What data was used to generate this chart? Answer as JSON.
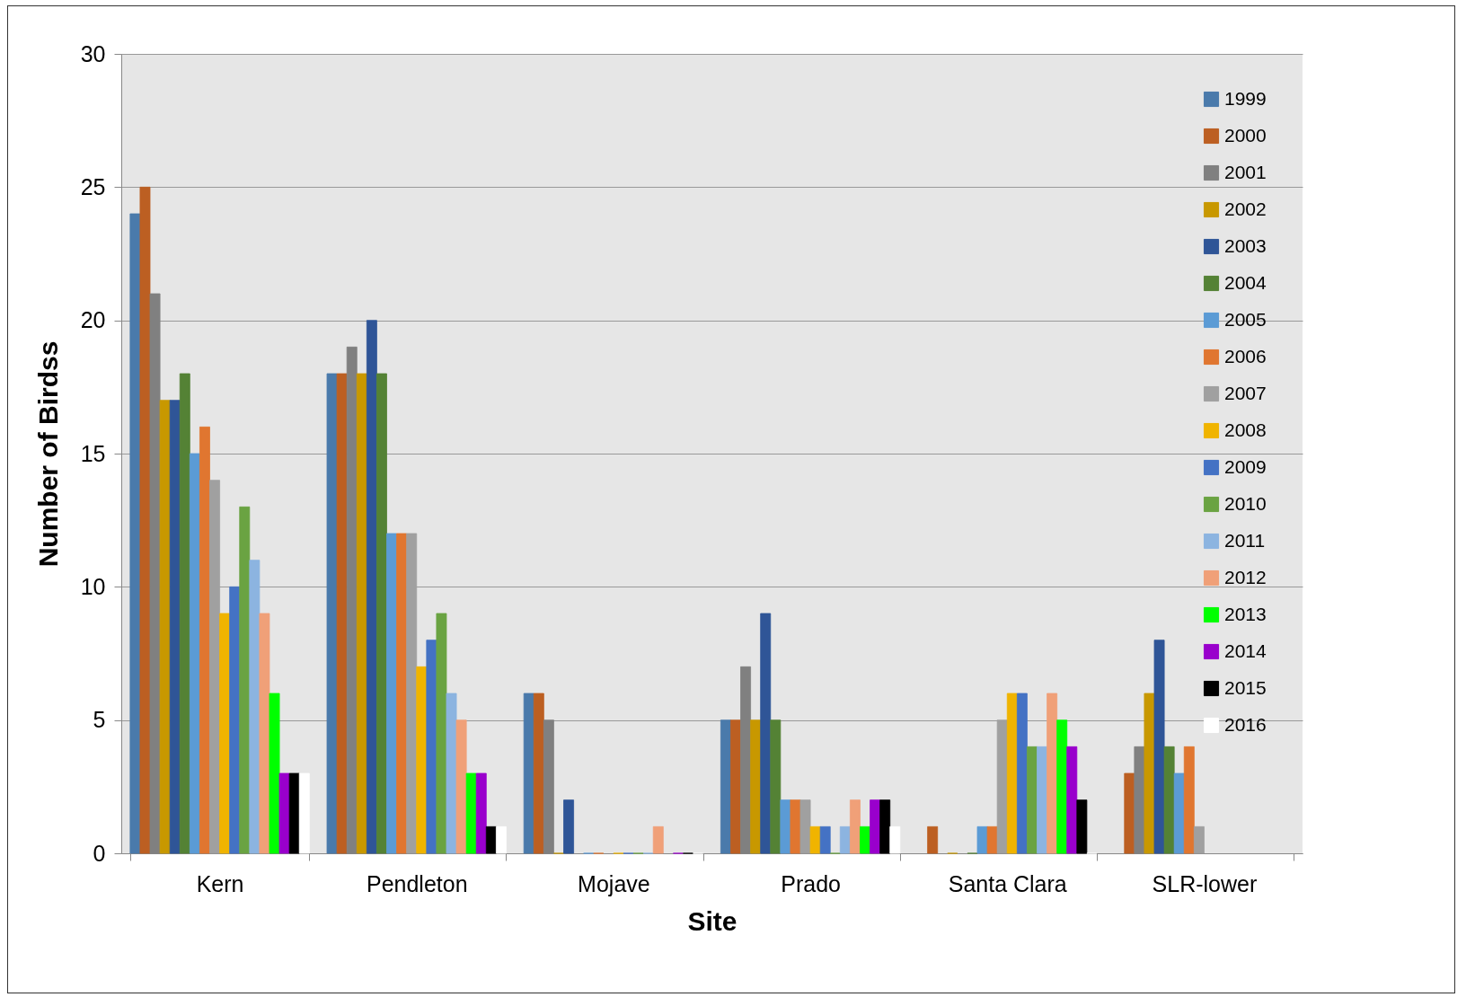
{
  "chart_data": {
    "type": "bar",
    "xlabel": "Site",
    "ylabel": "Number of Birdss",
    "categories": [
      "Kern",
      "Pendleton",
      "Mojave",
      "Prado",
      "Santa Clara",
      "SLR-lower"
    ],
    "series": [
      {
        "name": "1999",
        "color": "#4a7aab",
        "values": [
          24,
          18,
          6,
          5,
          null,
          null
        ]
      },
      {
        "name": "2000",
        "color": "#bc5f22",
        "values": [
          25,
          18,
          6,
          5,
          1,
          3
        ]
      },
      {
        "name": "2001",
        "color": "#808080",
        "values": [
          21,
          19,
          5,
          7,
          null,
          4
        ]
      },
      {
        "name": "2002",
        "color": "#c89800",
        "values": [
          17,
          18,
          0,
          5,
          0,
          6
        ]
      },
      {
        "name": "2003",
        "color": "#2f5597",
        "values": [
          17,
          20,
          2,
          9,
          null,
          8
        ]
      },
      {
        "name": "2004",
        "color": "#548235",
        "values": [
          18,
          18,
          null,
          5,
          0,
          4
        ]
      },
      {
        "name": "2005",
        "color": "#5b9bd5",
        "values": [
          15,
          12,
          0,
          2,
          1,
          3
        ]
      },
      {
        "name": "2006",
        "color": "#e07630",
        "values": [
          16,
          12,
          0,
          2,
          1,
          4
        ]
      },
      {
        "name": "2007",
        "color": "#a0a0a0",
        "values": [
          14,
          12,
          null,
          2,
          5,
          1
        ]
      },
      {
        "name": "2008",
        "color": "#f0b400",
        "values": [
          9,
          7,
          0,
          1,
          6,
          null
        ]
      },
      {
        "name": "2009",
        "color": "#4472c4",
        "values": [
          10,
          8,
          0,
          1,
          6,
          null
        ]
      },
      {
        "name": "2010",
        "color": "#6aa342",
        "values": [
          13,
          9,
          0,
          0,
          4,
          null
        ]
      },
      {
        "name": "2011",
        "color": "#8cb4e0",
        "values": [
          11,
          6,
          0,
          1,
          4,
          null
        ]
      },
      {
        "name": "2012",
        "color": "#f0a078",
        "values": [
          9,
          5,
          1,
          2,
          6,
          null
        ]
      },
      {
        "name": "2013",
        "color": "#00ff00",
        "values": [
          6,
          3,
          null,
          1,
          5,
          null
        ]
      },
      {
        "name": "2014",
        "color": "#9900cc",
        "values": [
          3,
          3,
          0,
          2,
          4,
          null
        ]
      },
      {
        "name": "2015",
        "color": "#000000",
        "values": [
          3,
          1,
          0,
          2,
          2,
          null
        ]
      },
      {
        "name": "2016",
        "color": "#ffffff",
        "values": [
          3,
          1,
          0,
          1,
          0,
          null
        ]
      }
    ],
    "ylim": [
      0,
      30
    ],
    "yticks": [
      0,
      5,
      10,
      15,
      20,
      25,
      30
    ],
    "grid": "y",
    "legend": "top right"
  }
}
